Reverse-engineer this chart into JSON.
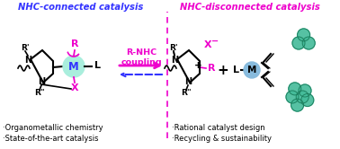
{
  "title_left": "NHC-connected catalysis",
  "title_right": "NHC-disconnected catalysis",
  "title_left_color": "#3333ff",
  "title_right_color": "#ee00cc",
  "coupling_label": "R-NHC\ncoupling",
  "coupling_color": "#ee00cc",
  "bullet_left_1": "·Organometallic chemistry",
  "bullet_left_2": "·State-of-the-art catalysis",
  "bullet_right_1": "·Rational catalyst design",
  "bullet_right_2": "·Recycling & sustainability",
  "bullet_color": "#000000",
  "dashed_line_color": "#ee00cc",
  "arrow_forward_color": "#ee00cc",
  "arrow_back_color": "#3333ff",
  "M_color": "#aaeedd",
  "M_text_color": "#3333ff",
  "M2_color": "#88bbdd",
  "M2_text_color": "#000000",
  "bg_color": "#ffffff",
  "black": "#000000",
  "magenta": "#ee00cc",
  "teal": "#44bb99"
}
